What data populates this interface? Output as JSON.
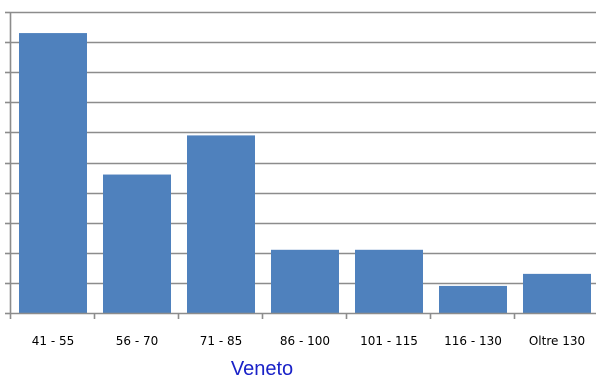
{
  "chart_data": {
    "type": "bar",
    "categories": [
      "41 - 55",
      "56 - 70",
      "71 - 85",
      "86 - 100",
      "101 - 115",
      "116 - 130",
      "Oltre 130"
    ],
    "values": [
      9.3,
      4.6,
      5.9,
      2.1,
      2.1,
      0.9,
      1.3
    ],
    "ylim": [
      0,
      10
    ],
    "yticks_count": 10,
    "grid": true,
    "y_tick_labels_visible": false,
    "legend": "none",
    "caption": "Veneto",
    "colors": {
      "bar": "#4f81bd",
      "grid": "#8c8c8c",
      "axis": "#8c8c8c",
      "caption": "#1a22c8"
    }
  }
}
